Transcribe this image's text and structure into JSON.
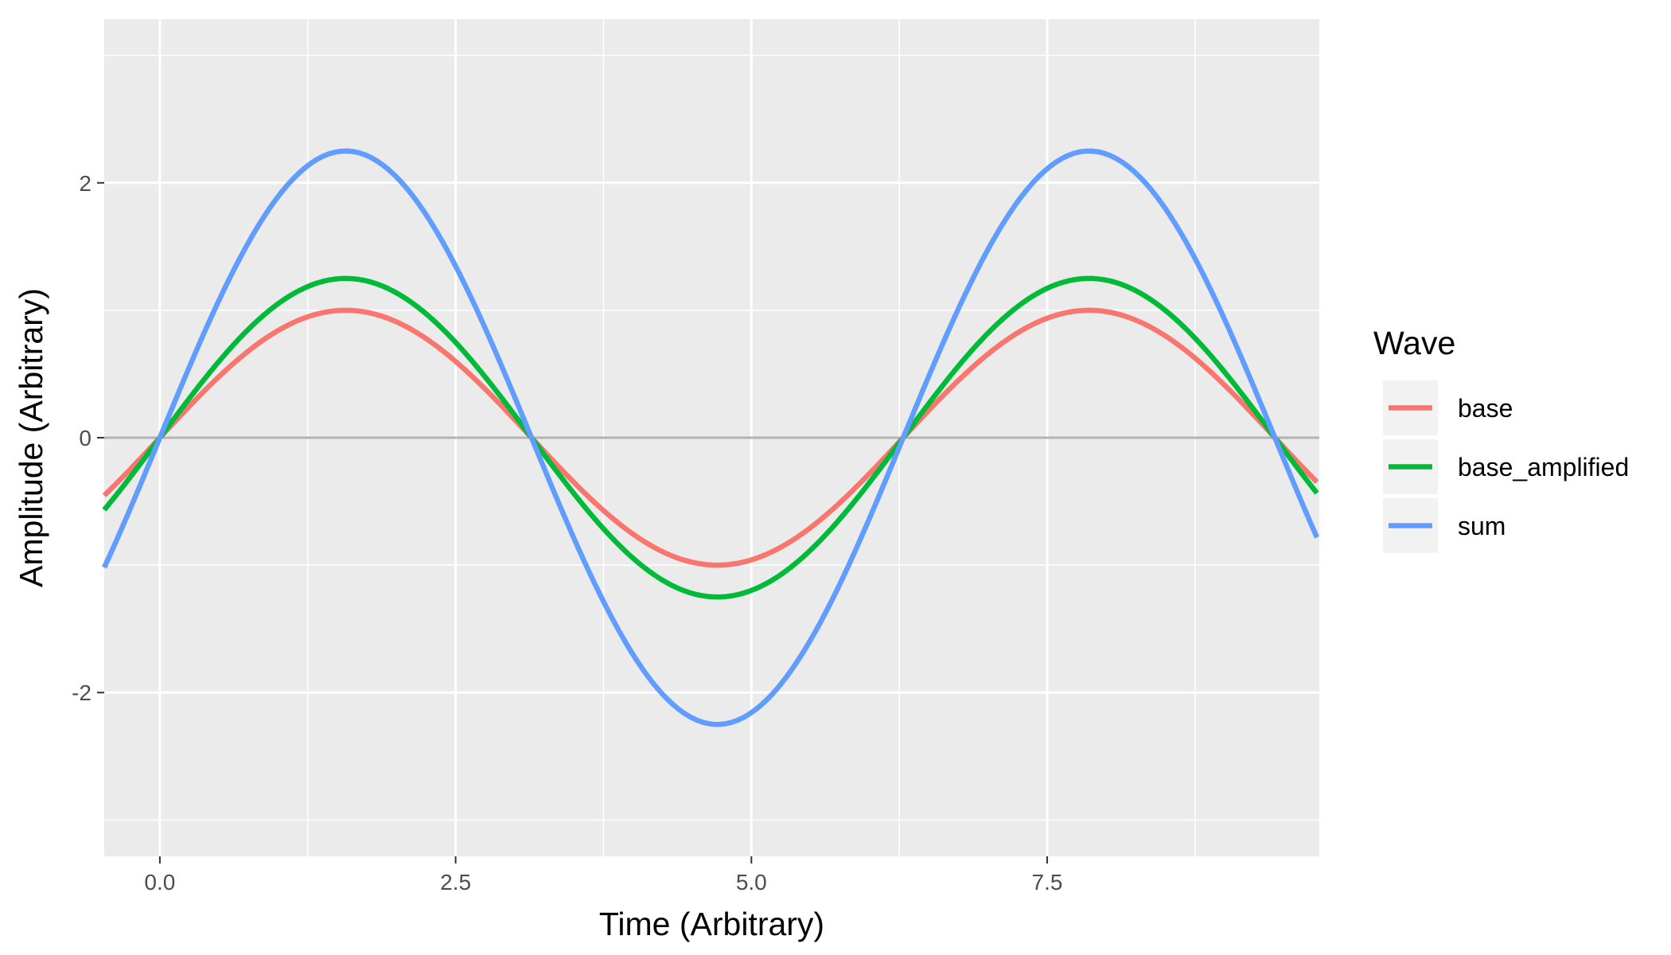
{
  "chart_data": {
    "type": "line",
    "xlabel": "Time (Arbitrary)",
    "ylabel": "Amplitude (Arbitrary)",
    "xlim": [
      -0.47,
      9.8
    ],
    "ylim": [
      -3.285,
      3.285
    ],
    "x_ticks": [
      0.0,
      2.5,
      5.0,
      7.5
    ],
    "x_tick_labels": [
      "0.0",
      "2.5",
      "5.0",
      "7.5"
    ],
    "y_ticks": [
      -2,
      0,
      2
    ],
    "y_tick_labels": [
      "-2",
      "0",
      "2"
    ],
    "x_range": [
      -0.47,
      9.8
    ],
    "x_step": 0.05,
    "series": [
      {
        "name": "base",
        "color": "#F8766D",
        "amplitude": 1.0,
        "function": "sin"
      },
      {
        "name": "base_amplified",
        "color": "#00BA38",
        "amplitude": 1.25,
        "function": "sin"
      },
      {
        "name": "sum",
        "color": "#619CFF",
        "amplitude": 2.25,
        "function": "sin"
      }
    ],
    "hline": {
      "y": 0,
      "color": "#B3B3B3"
    },
    "legend": {
      "title": "Wave",
      "position": "right"
    },
    "panel_background": "#EBEBEB",
    "grid": true
  }
}
